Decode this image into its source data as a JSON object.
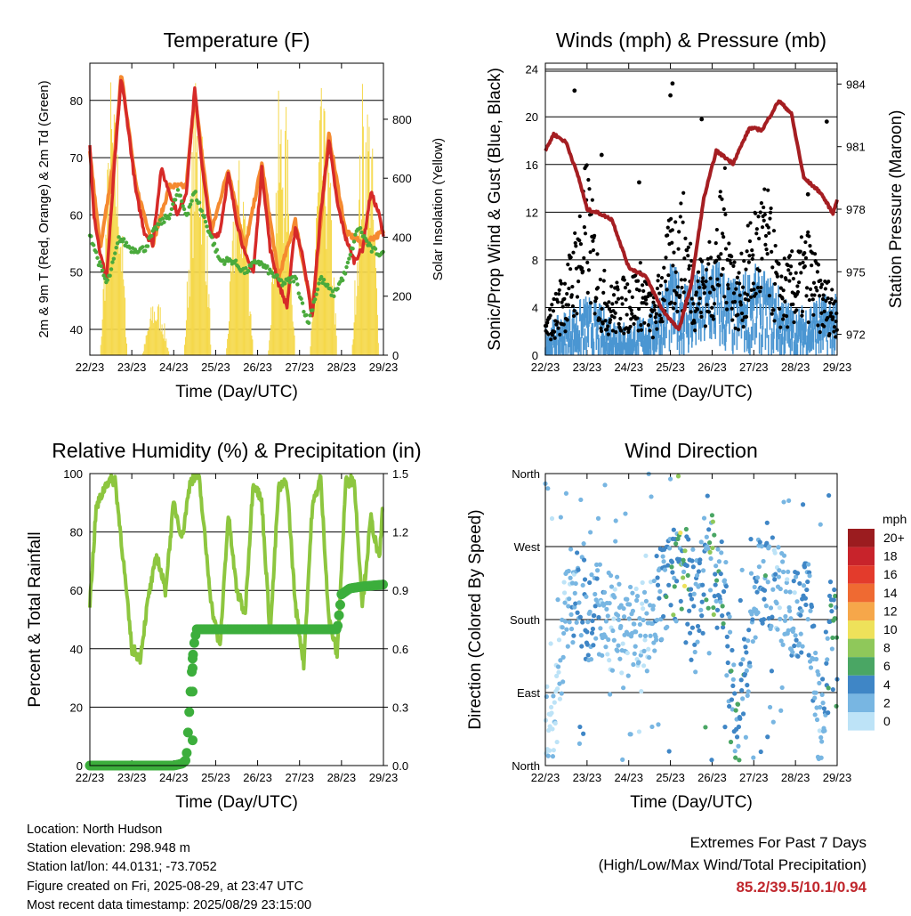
{
  "chart_data": [
    {
      "type": "line",
      "title": "Temperature (F)",
      "xlabel": "Time (Day/UTC)",
      "ylabel": "2m & 9m T (Red, Orange) & 2m Td (Green)",
      "y2label": "Solar Insolation (Yellow)",
      "ylim": [
        35.5,
        86.5
      ],
      "y2lim": [
        0,
        990
      ],
      "yticks": [
        40,
        50,
        60,
        70,
        80
      ],
      "y2ticks": [
        0,
        200,
        400,
        600,
        800
      ],
      "x_ticks": [
        "22/23",
        "23/23",
        "24/23",
        "25/23",
        "26/23",
        "27/23",
        "28/23",
        "29/23"
      ],
      "grid": "horizontal",
      "colors": {
        "t2m": "#d62a28",
        "t9m": "#f58a30",
        "td": "#4aaa3c",
        "solar": "#f5d84a"
      },
      "series": [
        {
          "name": "2m T",
          "axis": "left",
          "x": [
            0,
            0.1,
            0.25,
            0.4,
            0.6,
            0.75,
            0.9,
            1.1,
            1.3,
            1.5,
            1.7,
            1.9,
            2.1,
            2.3,
            2.5,
            2.7,
            2.9,
            3.1,
            3.3,
            3.5,
            3.7,
            3.9,
            4.1,
            4.3,
            4.5,
            4.7,
            4.9,
            5.1,
            5.3,
            5.5,
            5.7,
            5.9,
            6.1,
            6.3,
            6.5,
            6.7,
            6.9,
            7.0
          ],
          "values": [
            72,
            60,
            53,
            49,
            70,
            84,
            76,
            64,
            57,
            55,
            68,
            64,
            60,
            64,
            82,
            67,
            56,
            57,
            67,
            59,
            53,
            50,
            68,
            54,
            48,
            44,
            58,
            52,
            42,
            60,
            73,
            62,
            56,
            52,
            54,
            64,
            60,
            56
          ]
        },
        {
          "name": "9m T",
          "axis": "left",
          "x": [
            0,
            0.25,
            0.6,
            0.75,
            1.1,
            1.5,
            1.9,
            2.3,
            2.5,
            2.9,
            3.3,
            3.7,
            4.1,
            4.5,
            4.9,
            5.3,
            5.7,
            6.1,
            6.5,
            7.0
          ],
          "values": [
            71,
            54,
            71,
            85,
            65,
            55,
            65,
            65,
            81,
            57,
            68,
            54,
            69,
            49,
            59,
            43,
            74,
            57,
            55,
            57
          ]
        },
        {
          "name": "2m Td",
          "axis": "left",
          "x": [
            0,
            0.2,
            0.4,
            0.5,
            0.7,
            1.0,
            1.3,
            1.6,
            1.9,
            2.1,
            2.3,
            2.5,
            2.8,
            3.1,
            3.4,
            3.7,
            4.0,
            4.3,
            4.6,
            4.9,
            5.2,
            5.5,
            5.8,
            6.1,
            6.4,
            6.7,
            7.0
          ],
          "values": [
            57,
            52,
            48,
            50,
            56,
            54,
            54,
            58,
            60,
            64,
            60,
            64,
            58,
            52,
            52,
            50,
            52,
            50,
            48,
            49,
            41,
            49,
            46,
            50,
            58,
            54,
            53
          ]
        },
        {
          "name": "Solar Insolation",
          "axis": "right",
          "x": [
            0.25,
            0.5,
            0.7,
            0.9,
            1.25,
            1.5,
            1.7,
            1.9,
            2.25,
            2.5,
            2.7,
            2.9,
            3.25,
            3.5,
            3.7,
            3.9,
            4.25,
            4.5,
            4.7,
            4.9,
            5.25,
            5.5,
            5.7,
            5.9,
            6.25,
            6.5,
            6.7,
            6.9
          ],
          "values": [
            0,
            970,
            700,
            0,
            0,
            200,
            180,
            0,
            0,
            950,
            850,
            0,
            0,
            700,
            640,
            0,
            0,
            900,
            850,
            0,
            0,
            930,
            750,
            0,
            0,
            950,
            900,
            0
          ]
        }
      ]
    },
    {
      "type": "scatter",
      "title": "Winds (mph) & Pressure (mb)",
      "xlabel": "Time (Day/UTC)",
      "ylabel": "Sonic/Prop Wind & Gust (Blue, Black)",
      "y2label": "Station Pressure (Maroon)",
      "ylim": [
        0,
        24.5
      ],
      "y2lim": [
        971,
        985
      ],
      "yticks": [
        0,
        4,
        8,
        12,
        16,
        20,
        24
      ],
      "y2ticks": [
        972,
        975,
        978,
        981,
        984
      ],
      "x_ticks": [
        "22/23",
        "23/23",
        "24/23",
        "25/23",
        "26/23",
        "27/23",
        "28/23",
        "29/23"
      ],
      "grid": "horizontal",
      "colors": {
        "wind": "#4b96d2",
        "gust": "#000000",
        "pressure": "#a51e22"
      },
      "series": [
        {
          "name": "Sonic/Prop Wind",
          "axis": "left",
          "x": [
            0,
            0.5,
            1,
            1.5,
            2,
            2.5,
            3,
            3.5,
            4,
            4.5,
            5,
            5.5,
            6,
            6.5,
            7
          ],
          "values": [
            2,
            3,
            4,
            3,
            2,
            3,
            6,
            5,
            7,
            5,
            6,
            5,
            3,
            4,
            4
          ]
        },
        {
          "name": "Gust",
          "axis": "left",
          "x": [
            0,
            0.3,
            0.6,
            1,
            1.3,
            1.6,
            2,
            2.3,
            2.6,
            3,
            3.3,
            3.6,
            4,
            4.3,
            4.6,
            5,
            5.3,
            5.6,
            6,
            6.3,
            6.6,
            7
          ],
          "values": [
            3,
            6,
            9,
            17,
            8,
            6,
            7,
            8,
            5,
            12,
            14,
            8,
            10,
            16,
            7,
            13,
            15,
            8,
            9,
            11,
            7,
            6
          ]
        },
        {
          "name": "Station Pressure",
          "axis": "right",
          "x": [
            0,
            0.2,
            0.5,
            0.8,
            1.0,
            1.3,
            1.6,
            2.0,
            2.4,
            2.8,
            3.2,
            3.5,
            3.8,
            4.1,
            4.5,
            4.9,
            5.2,
            5.6,
            5.9,
            6.2,
            6.6,
            6.9,
            7.0
          ],
          "values": [
            980.8,
            981.6,
            981.2,
            979.5,
            978.0,
            977.8,
            977.5,
            975.2,
            974.8,
            973.2,
            972.2,
            974.4,
            978.5,
            980.8,
            980.2,
            981.9,
            981.8,
            983.2,
            982.6,
            979.5,
            978.8,
            977.8,
            978.5
          ]
        }
      ]
    },
    {
      "type": "line",
      "title": "Relative Humidity (%) & Precipitation (in)",
      "xlabel": "Time (Day/UTC)",
      "ylabel": "Percent & Total Rainfall",
      "ylim": [
        0,
        100
      ],
      "y2lim": [
        0,
        1.5
      ],
      "yticks": [
        0,
        20,
        40,
        60,
        80,
        100
      ],
      "y2ticks": [
        "0.0",
        "0.3",
        "0.6",
        "0.9",
        "1.2",
        "1.5"
      ],
      "x_ticks": [
        "22/23",
        "23/23",
        "24/23",
        "25/23",
        "26/23",
        "27/23",
        "28/23",
        "29/23"
      ],
      "grid": "horizontal",
      "colors": {
        "rh": "#8dc63f",
        "precip": "#3cae3c"
      },
      "series": [
        {
          "name": "Relative Humidity",
          "axis": "left",
          "x": [
            0,
            0.15,
            0.4,
            0.6,
            0.8,
            1.0,
            1.2,
            1.4,
            1.6,
            1.8,
            2.0,
            2.2,
            2.4,
            2.6,
            2.9,
            3.1,
            3.3,
            3.5,
            3.7,
            3.9,
            4.1,
            4.3,
            4.5,
            4.7,
            4.9,
            5.1,
            5.3,
            5.5,
            5.7,
            5.9,
            6.1,
            6.3,
            6.5,
            6.7,
            6.9,
            7.0
          ],
          "values": [
            55,
            88,
            97,
            98,
            70,
            40,
            37,
            58,
            72,
            60,
            90,
            78,
            98,
            99,
            55,
            40,
            86,
            60,
            52,
            98,
            90,
            45,
            95,
            97,
            55,
            35,
            88,
            99,
            50,
            38,
            97,
            98,
            55,
            85,
            70,
            92
          ]
        },
        {
          "name": "Total Rainfall",
          "axis": "right",
          "x": [
            0,
            0.5,
            1,
            1.5,
            2,
            2.2,
            2.3,
            2.4,
            2.45,
            2.5,
            2.55,
            3,
            4,
            5,
            5.9,
            6.0,
            6.2,
            6.5,
            7.0
          ],
          "values": [
            0,
            0,
            0,
            0,
            0,
            0.01,
            0.03,
            0.38,
            0.55,
            0.65,
            0.7,
            0.7,
            0.7,
            0.7,
            0.7,
            0.88,
            0.91,
            0.92,
            0.93
          ]
        }
      ]
    },
    {
      "type": "scatter",
      "title": "Wind Direction",
      "xlabel": "Time (Day/UTC)",
      "ylabel": "Direction (Colored By Speed)",
      "ylim": [
        0,
        360
      ],
      "yticks": [
        "North",
        "East",
        "South",
        "West",
        "North"
      ],
      "x_ticks": [
        "22/23",
        "23/23",
        "24/23",
        "25/23",
        "26/23",
        "27/23",
        "28/23",
        "29/23"
      ],
      "grid": "horizontal",
      "legend": {
        "title": "mph",
        "position": "right",
        "levels": [
          "20+",
          "18",
          "16",
          "14",
          "12",
          "10",
          "8",
          "6",
          "4",
          "2",
          "0"
        ],
        "colors": [
          "#9b1c1f",
          "#c8232b",
          "#e33b2c",
          "#ef6a32",
          "#f6a74a",
          "#eee15a",
          "#8fc85a",
          "#4aa664",
          "#3f86c6",
          "#78b6e2",
          "#bde3f7"
        ]
      },
      "series": [
        {
          "name": "Direction",
          "x": [
            0.2,
            0.5,
            0.8,
            1.0,
            1.3,
            1.6,
            2.0,
            2.3,
            2.6,
            3.0,
            3.3,
            3.6,
            4.0,
            4.3,
            4.6,
            5.0,
            5.3,
            5.6,
            6.0,
            6.3,
            6.6,
            6.9
          ],
          "values": [
            40,
            200,
            220,
            180,
            185,
            175,
            170,
            150,
            200,
            230,
            245,
            200,
            250,
            190,
            30,
            215,
            230,
            210,
            180,
            200,
            30,
            210
          ],
          "speed": [
            1,
            2,
            3,
            4,
            3,
            2,
            2,
            1,
            3,
            5,
            8,
            3,
            6,
            4,
            5,
            3,
            4,
            2,
            3,
            4,
            2,
            5
          ]
        }
      ]
    }
  ],
  "footer": {
    "location": "Location: North Hudson",
    "elevation": "Station elevation: 298.948 m",
    "latlon": "Station lat/lon: 44.0131; -73.7052",
    "created": "Figure created on Fri, 2025-08-29, at 23:47 UTC",
    "recent": "Most recent data timestamp: 2025/08/29 23:15:00"
  },
  "extremes": {
    "title": "Extremes For Past 7 Days",
    "subtitle": "(High/Low/Max Wind/Total Precipitation)",
    "values": "85.2/39.5/10.1/0.94"
  }
}
